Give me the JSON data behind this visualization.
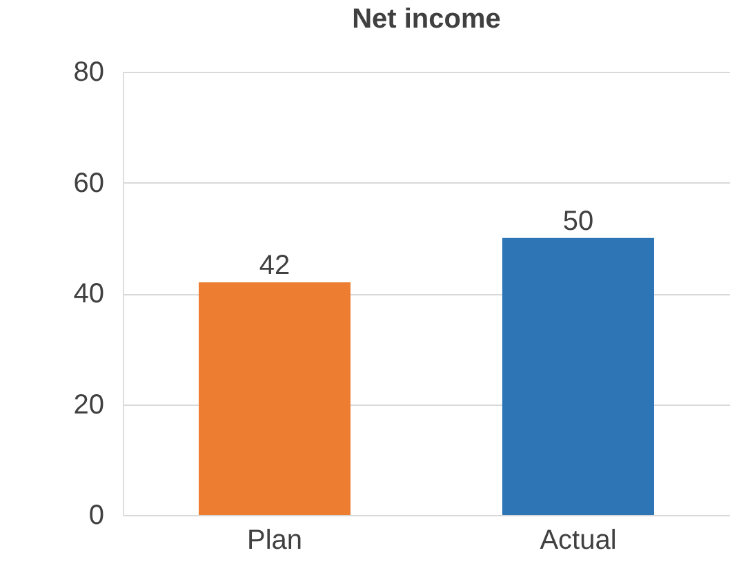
{
  "chart_data": {
    "type": "bar",
    "title": "Net income",
    "categories": [
      "Plan",
      "Actual"
    ],
    "values": [
      42,
      50
    ],
    "colors": [
      "#ed7d31",
      "#2e75b6"
    ],
    "ylim": [
      0,
      80
    ],
    "yticks": [
      0,
      20,
      40,
      60,
      80
    ],
    "grid": "y",
    "data_labels": true
  }
}
